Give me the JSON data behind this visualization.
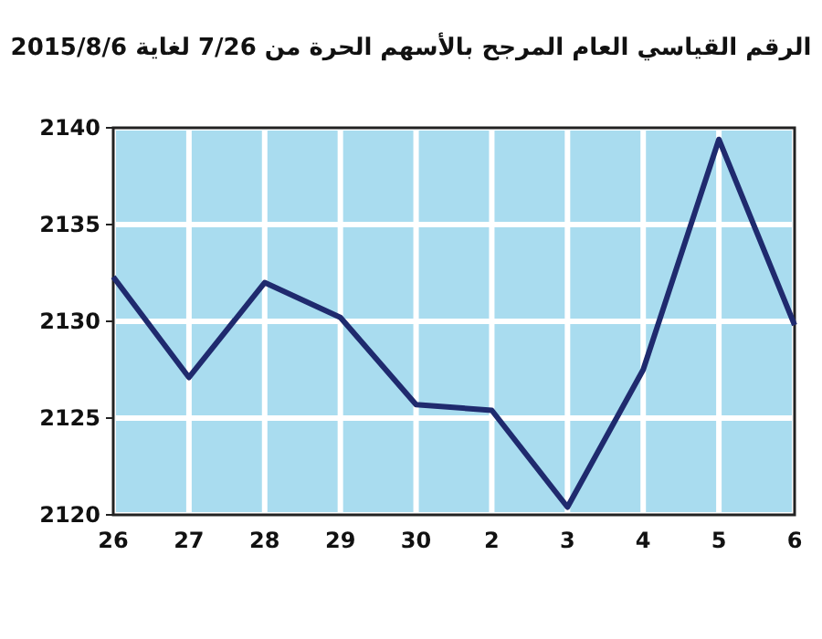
{
  "chart_data": {
    "type": "line",
    "title": "الرقم القياسي العام المرجح بالأسهم الحرة من 7/26 لغاية 2015/8/6",
    "categories": [
      "26",
      "27",
      "28",
      "29",
      "30",
      "2",
      "3",
      "4",
      "5",
      "6"
    ],
    "series": [
      {
        "color": "#1f2a6e",
        "values": [
          2132.3,
          2127.1,
          2132.0,
          2130.2,
          2125.7,
          2125.4,
          2120.4,
          2127.5,
          2139.4,
          2129.8
        ]
      }
    ],
    "ylim": [
      2120,
      2140
    ],
    "yticks": [
      2120,
      2125,
      2130,
      2135,
      2140
    ],
    "grid": true,
    "marker": "none",
    "line_style": "solid"
  }
}
